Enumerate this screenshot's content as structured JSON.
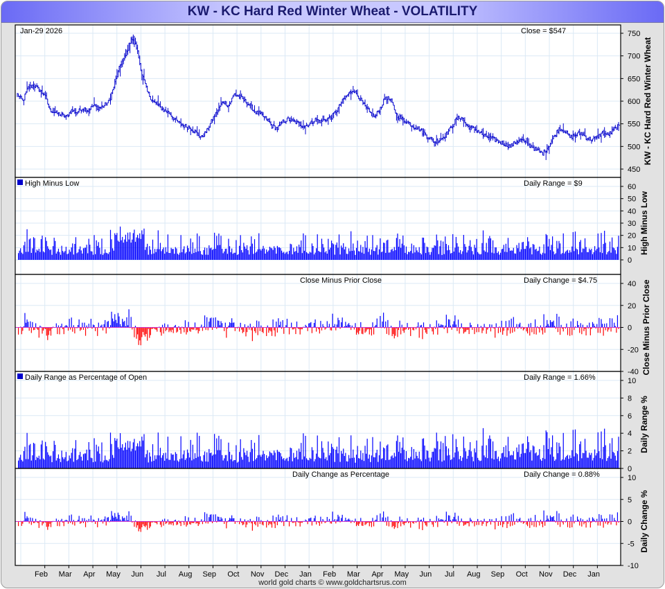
{
  "title": "KW  -  KC Hard Red Winter Wheat - VOLATILITY",
  "footer": "world gold charts © www.goldchartsrus.com",
  "colors": {
    "up": "#0000ff",
    "down": "#ff0000",
    "price": "#0000cc",
    "zero": "#cc33cc",
    "grid": "#dbe9f5"
  },
  "chart_data": [
    {
      "type": "ohlc",
      "panel": "price",
      "date_label": "Jan-29  2026",
      "value_label": "Close = $547",
      "ylabel": "KW  -  KC Hard Red Winter Wheat",
      "ylim": [
        430,
        760
      ],
      "ticks": [
        450,
        500,
        550,
        600,
        650,
        700,
        750
      ],
      "weekly_close": [
        615,
        600,
        630,
        635,
        625,
        615,
        580,
        575,
        570,
        565,
        580,
        575,
        585,
        580,
        590,
        585,
        590,
        600,
        640,
        680,
        700,
        740,
        720,
        660,
        620,
        600,
        590,
        580,
        575,
        560,
        550,
        545,
        540,
        530,
        520,
        535,
        560,
        580,
        600,
        590,
        615,
        610,
        600,
        590,
        575,
        570,
        560,
        545,
        540,
        555,
        560,
        555,
        550,
        545,
        550,
        560,
        555,
        560,
        565,
        580,
        600,
        615,
        625,
        610,
        590,
        575,
        565,
        585,
        610,
        600,
        570,
        560,
        555,
        545,
        540,
        530,
        520,
        510,
        515,
        525,
        540,
        560,
        565,
        545,
        540,
        535,
        525,
        520,
        515,
        510,
        505,
        500,
        510,
        515,
        505,
        500,
        490,
        485,
        500,
        520,
        540,
        535,
        520,
        525,
        530,
        520,
        515,
        520,
        530,
        525,
        535,
        547
      ],
      "x_months": [
        "Feb",
        "Mar",
        "Apr",
        "May",
        "Jun",
        "Jul",
        "Aug",
        "Sep",
        "Oct",
        "Nov",
        "Dec",
        "Jan",
        "Feb",
        "Mar",
        "Apr",
        "May",
        "Jun",
        "Jul",
        "Aug",
        "Sep",
        "Oct",
        "Nov",
        "Dec",
        "Jan"
      ]
    },
    {
      "type": "bar",
      "panel": "high_minus_low",
      "legend": "High Minus Low",
      "value_label": "Daily Range = $9",
      "ylabel": "High Minus Low",
      "ylim": [
        0,
        65
      ],
      "ticks": [
        0,
        10,
        20,
        30,
        40,
        50,
        60
      ]
    },
    {
      "type": "bar",
      "panel": "close_minus_prior",
      "legend": "Close Minus Prior Close",
      "value_label": "Daily Change = $4.75",
      "ylabel": "Close Minus Prior Close",
      "ylim": [
        -40,
        40
      ],
      "ticks": [
        -40,
        -20,
        0,
        20,
        40
      ]
    },
    {
      "type": "bar",
      "panel": "range_pct",
      "legend": "Daily Range as Percentage of Open",
      "value_label": "Daily Range = 1.66%",
      "ylabel": "Daily Range %",
      "ylim": [
        0,
        10
      ],
      "ticks": [
        0,
        2,
        4,
        6,
        8,
        10
      ]
    },
    {
      "type": "bar",
      "panel": "change_pct",
      "legend": "Daily Change as Percentage",
      "value_label": "Daily Change = 0.88%",
      "ylabel": "Daily Change %",
      "ylim": [
        -10,
        10
      ],
      "ticks": [
        -10,
        -5,
        0,
        5,
        10
      ]
    }
  ]
}
